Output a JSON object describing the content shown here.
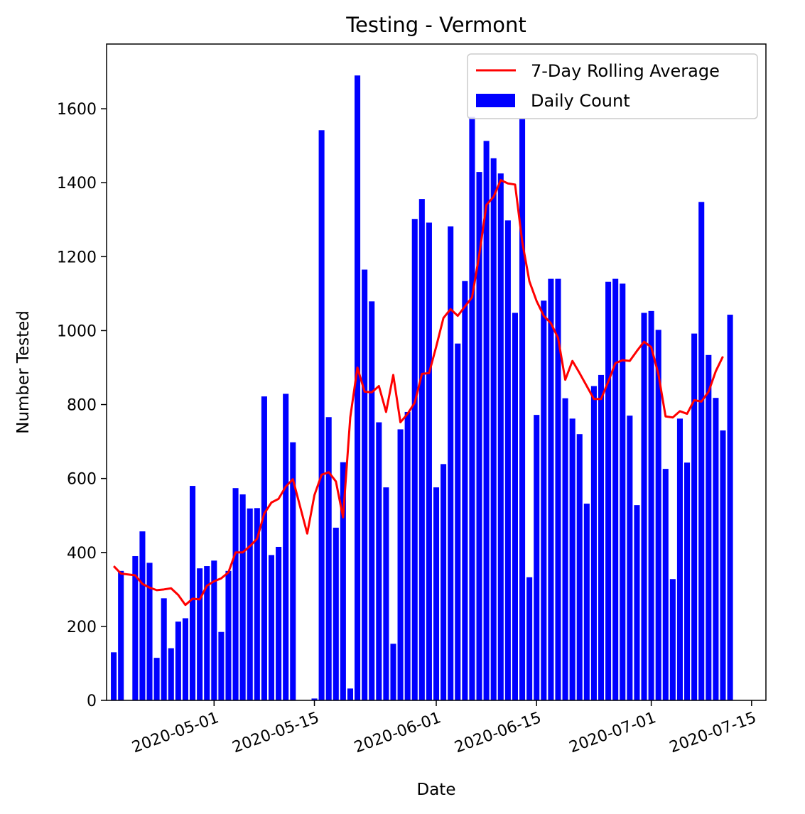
{
  "chart_data": {
    "type": "bar",
    "title": "Testing - Vermont",
    "xlabel": "Date",
    "ylabel": "Number Tested",
    "x_axis": {
      "type": "date",
      "range": [
        "2020-04-16",
        "2020-07-17"
      ],
      "ticks": [
        "2020-05-01",
        "2020-05-15",
        "2020-06-01",
        "2020-06-15",
        "2020-07-01",
        "2020-07-15"
      ],
      "tick_rotation_deg": -20
    },
    "y_axis": {
      "range": [
        0,
        1775
      ],
      "ticks": [
        0,
        200,
        400,
        600,
        800,
        1000,
        1200,
        1400,
        1600
      ]
    },
    "grid": false,
    "legend": {
      "position": "top-right",
      "entries": [
        {
          "label": "7-Day Rolling Average",
          "kind": "line",
          "color": "#ff0000"
        },
        {
          "label": "Daily Count",
          "kind": "bar",
          "color": "#0000ff"
        }
      ]
    },
    "dates": [
      "2020-04-17",
      "2020-04-18",
      "2020-04-19",
      "2020-04-20",
      "2020-04-21",
      "2020-04-22",
      "2020-04-23",
      "2020-04-24",
      "2020-04-25",
      "2020-04-26",
      "2020-04-27",
      "2020-04-28",
      "2020-04-29",
      "2020-04-30",
      "2020-05-01",
      "2020-05-02",
      "2020-05-03",
      "2020-05-04",
      "2020-05-05",
      "2020-05-06",
      "2020-05-07",
      "2020-05-08",
      "2020-05-09",
      "2020-05-10",
      "2020-05-11",
      "2020-05-12",
      "2020-05-13",
      "2020-05-14",
      "2020-05-15",
      "2020-05-16",
      "2020-05-17",
      "2020-05-18",
      "2020-05-19",
      "2020-05-20",
      "2020-05-21",
      "2020-05-22",
      "2020-05-23",
      "2020-05-24",
      "2020-05-25",
      "2020-05-26",
      "2020-05-27",
      "2020-05-28",
      "2020-05-29",
      "2020-05-30",
      "2020-05-31",
      "2020-06-01",
      "2020-06-02",
      "2020-06-03",
      "2020-06-04",
      "2020-06-05",
      "2020-06-06",
      "2020-06-07",
      "2020-06-08",
      "2020-06-09",
      "2020-06-10",
      "2020-06-11",
      "2020-06-12",
      "2020-06-13",
      "2020-06-14",
      "2020-06-15",
      "2020-06-16",
      "2020-06-17",
      "2020-06-18",
      "2020-06-19",
      "2020-06-20",
      "2020-06-21",
      "2020-06-22",
      "2020-06-23",
      "2020-06-24",
      "2020-06-25",
      "2020-06-26",
      "2020-06-27",
      "2020-06-28",
      "2020-06-29",
      "2020-06-30",
      "2020-07-01",
      "2020-07-02",
      "2020-07-03",
      "2020-07-04",
      "2020-07-05",
      "2020-07-06",
      "2020-07-07",
      "2020-07-08",
      "2020-07-09",
      "2020-07-10",
      "2020-07-11",
      "2020-07-12",
      "2020-07-13",
      "2020-07-14",
      "2020-07-15"
    ],
    "series": [
      {
        "name": "Daily Count",
        "kind": "bar",
        "color": "#0000ff",
        "values": [
          130,
          350,
          null,
          390,
          457,
          372,
          115,
          276,
          141,
          213,
          222,
          580,
          357,
          363,
          378,
          185,
          350,
          574,
          557,
          519,
          520,
          822,
          393,
          415,
          829,
          698,
          null,
          null,
          5,
          1542,
          766,
          467,
          644,
          32,
          1690,
          1165,
          1079,
          752,
          576,
          153,
          733,
          780,
          1302,
          1356,
          1292,
          576,
          639,
          1282,
          965,
          1134,
          1578,
          1429,
          1513,
          1466,
          1425,
          1298,
          1048,
          1574,
          333,
          772,
          1081,
          1140,
          1140,
          817,
          762,
          720,
          532,
          850,
          880,
          1132,
          1140,
          1127,
          770,
          528,
          1048,
          1053,
          1002,
          626,
          328,
          762,
          643,
          992,
          1348,
          934,
          818,
          730,
          1043,
          null,
          null,
          null
        ]
      },
      {
        "name": "7-Day Rolling Average",
        "kind": "line",
        "color": "#ff0000",
        "values": [
          363,
          343,
          null,
          338,
          315,
          305,
          298,
          300,
          303,
          285,
          258,
          275,
          273,
          310,
          322,
          330,
          346,
          400,
          400,
          417,
          437,
          505,
          535,
          545,
          578,
          598,
          null,
          451,
          555,
          610,
          617,
          592,
          495,
          765,
          900,
          835,
          833,
          850,
          780,
          880,
          752,
          775,
          805,
          883,
          885,
          957,
          1034,
          1058,
          1040,
          1065,
          1090,
          1205,
          1340,
          1362,
          1407,
          1398,
          1395,
          1240,
          1133,
          1080,
          1040,
          1020,
          980,
          867,
          918,
          885,
          850,
          815,
          815,
          862,
          912,
          920,
          918,
          945,
          970,
          955,
          882,
          768,
          765,
          782,
          775,
          812,
          808,
          835,
          890,
          930,
          null,
          null,
          null,
          null
        ]
      }
    ]
  }
}
